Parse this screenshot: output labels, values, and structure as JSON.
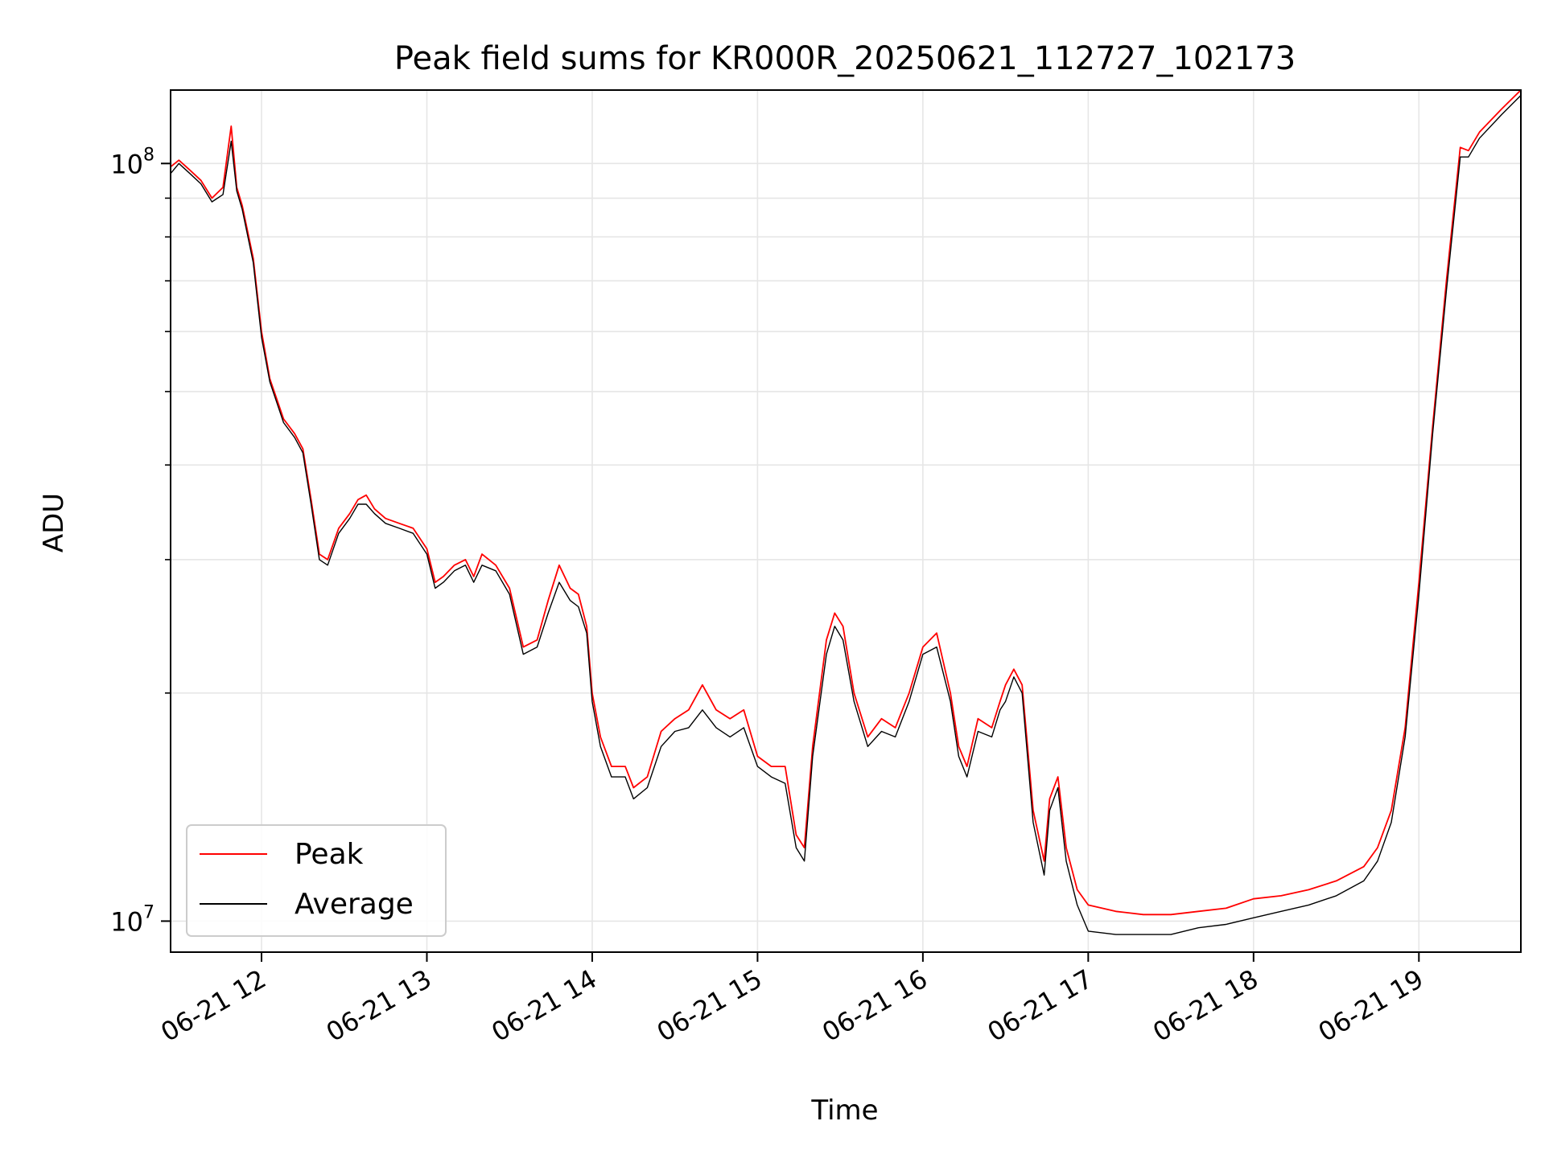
{
  "chart_data": {
    "type": "line",
    "title": "Peak field sums for KR000R_20250621_112727_102173",
    "xlabel": "Time",
    "ylabel": "ADU",
    "yscale": "log",
    "ylim": [
      9100000,
      125000000
    ],
    "xlim": [
      "2025-06-21 11:27",
      "2025-06-21 19:37"
    ],
    "grid": true,
    "legend_position": "lower-left",
    "x_ticks": [
      {
        "value": "2025-06-21 12:00",
        "label": "06-21 12"
      },
      {
        "value": "2025-06-21 13:00",
        "label": "06-21 13"
      },
      {
        "value": "2025-06-21 14:00",
        "label": "06-21 14"
      },
      {
        "value": "2025-06-21 15:00",
        "label": "06-21 15"
      },
      {
        "value": "2025-06-21 16:00",
        "label": "06-21 16"
      },
      {
        "value": "2025-06-21 17:00",
        "label": "06-21 17"
      },
      {
        "value": "2025-06-21 18:00",
        "label": "06-21 18"
      },
      {
        "value": "2025-06-21 19:00",
        "label": "06-21 19"
      }
    ],
    "y_major_ticks": [
      {
        "value": 10000000,
        "base": "10",
        "exp": "7"
      },
      {
        "value": 100000000,
        "base": "10",
        "exp": "8"
      }
    ],
    "y_minor_ticks": [
      20000000,
      30000000,
      40000000,
      50000000,
      60000000,
      70000000,
      80000000,
      90000000
    ],
    "series": [
      {
        "name": "Peak",
        "color": "#ff0000",
        "points": [
          [
            "2025-06-21 11:27",
            99000000
          ],
          [
            "2025-06-21 11:30",
            101000000
          ],
          [
            "2025-06-21 11:34",
            98000000
          ],
          [
            "2025-06-21 11:38",
            95000000
          ],
          [
            "2025-06-21 11:42",
            90000000
          ],
          [
            "2025-06-21 11:46",
            93000000
          ],
          [
            "2025-06-21 11:49",
            112000000
          ],
          [
            "2025-06-21 11:51",
            93000000
          ],
          [
            "2025-06-21 11:53",
            88000000
          ],
          [
            "2025-06-21 11:57",
            75000000
          ],
          [
            "2025-06-21 12:00",
            60000000
          ],
          [
            "2025-06-21 12:03",
            52000000
          ],
          [
            "2025-06-21 12:08",
            46000000
          ],
          [
            "2025-06-21 12:12",
            44000000
          ],
          [
            "2025-06-21 12:15",
            42000000
          ],
          [
            "2025-06-21 12:18",
            36000000
          ],
          [
            "2025-06-21 12:21",
            30500000
          ],
          [
            "2025-06-21 12:24",
            30000000
          ],
          [
            "2025-06-21 12:28",
            33000000
          ],
          [
            "2025-06-21 12:32",
            34500000
          ],
          [
            "2025-06-21 12:35",
            36000000
          ],
          [
            "2025-06-21 12:38",
            36500000
          ],
          [
            "2025-06-21 12:41",
            35000000
          ],
          [
            "2025-06-21 12:45",
            34000000
          ],
          [
            "2025-06-21 12:50",
            33500000
          ],
          [
            "2025-06-21 12:55",
            33000000
          ],
          [
            "2025-06-21 13:00",
            31000000
          ],
          [
            "2025-06-21 13:03",
            28000000
          ],
          [
            "2025-06-21 13:06",
            28500000
          ],
          [
            "2025-06-21 13:10",
            29500000
          ],
          [
            "2025-06-21 13:14",
            30000000
          ],
          [
            "2025-06-21 13:17",
            28500000
          ],
          [
            "2025-06-21 13:20",
            30500000
          ],
          [
            "2025-06-21 13:25",
            29500000
          ],
          [
            "2025-06-21 13:30",
            27500000
          ],
          [
            "2025-06-21 13:35",
            23000000
          ],
          [
            "2025-06-21 13:40",
            23500000
          ],
          [
            "2025-06-21 13:44",
            26500000
          ],
          [
            "2025-06-21 13:48",
            29500000
          ],
          [
            "2025-06-21 13:52",
            27500000
          ],
          [
            "2025-06-21 13:55",
            27000000
          ],
          [
            "2025-06-21 13:58",
            24500000
          ],
          [
            "2025-06-21 14:00",
            20000000
          ],
          [
            "2025-06-21 14:03",
            17500000
          ],
          [
            "2025-06-21 14:07",
            16000000
          ],
          [
            "2025-06-21 14:12",
            16000000
          ],
          [
            "2025-06-21 14:15",
            15000000
          ],
          [
            "2025-06-21 14:20",
            15500000
          ],
          [
            "2025-06-21 14:25",
            17800000
          ],
          [
            "2025-06-21 14:30",
            18500000
          ],
          [
            "2025-06-21 14:35",
            19000000
          ],
          [
            "2025-06-21 14:40",
            20500000
          ],
          [
            "2025-06-21 14:45",
            19000000
          ],
          [
            "2025-06-21 14:50",
            18500000
          ],
          [
            "2025-06-21 14:55",
            19000000
          ],
          [
            "2025-06-21 15:00",
            16500000
          ],
          [
            "2025-06-21 15:05",
            16000000
          ],
          [
            "2025-06-21 15:10",
            16000000
          ],
          [
            "2025-06-21 15:14",
            13000000
          ],
          [
            "2025-06-21 15:17",
            12500000
          ],
          [
            "2025-06-21 15:20",
            17000000
          ],
          [
            "2025-06-21 15:25",
            23500000
          ],
          [
            "2025-06-21 15:28",
            25500000
          ],
          [
            "2025-06-21 15:31",
            24500000
          ],
          [
            "2025-06-21 15:35",
            20000000
          ],
          [
            "2025-06-21 15:40",
            17500000
          ],
          [
            "2025-06-21 15:45",
            18500000
          ],
          [
            "2025-06-21 15:50",
            18000000
          ],
          [
            "2025-06-21 15:55",
            20000000
          ],
          [
            "2025-06-21 16:00",
            23000000
          ],
          [
            "2025-06-21 16:05",
            24000000
          ],
          [
            "2025-06-21 16:10",
            20000000
          ],
          [
            "2025-06-21 16:13",
            17000000
          ],
          [
            "2025-06-21 16:16",
            16000000
          ],
          [
            "2025-06-21 16:20",
            18500000
          ],
          [
            "2025-06-21 16:25",
            18000000
          ],
          [
            "2025-06-21 16:28",
            19500000
          ],
          [
            "2025-06-21 16:30",
            20500000
          ],
          [
            "2025-06-21 16:33",
            21500000
          ],
          [
            "2025-06-21 16:36",
            20500000
          ],
          [
            "2025-06-21 16:40",
            14000000
          ],
          [
            "2025-06-21 16:44",
            12000000
          ],
          [
            "2025-06-21 16:46",
            14500000
          ],
          [
            "2025-06-21 16:49",
            15500000
          ],
          [
            "2025-06-21 16:52",
            12500000
          ],
          [
            "2025-06-21 16:56",
            11000000
          ],
          [
            "2025-06-21 17:00",
            10500000
          ],
          [
            "2025-06-21 17:10",
            10300000
          ],
          [
            "2025-06-21 17:20",
            10200000
          ],
          [
            "2025-06-21 17:30",
            10200000
          ],
          [
            "2025-06-21 17:40",
            10300000
          ],
          [
            "2025-06-21 17:50",
            10400000
          ],
          [
            "2025-06-21 18:00",
            10700000
          ],
          [
            "2025-06-21 18:10",
            10800000
          ],
          [
            "2025-06-21 18:20",
            11000000
          ],
          [
            "2025-06-21 18:30",
            11300000
          ],
          [
            "2025-06-21 18:40",
            11800000
          ],
          [
            "2025-06-21 18:45",
            12500000
          ],
          [
            "2025-06-21 18:50",
            14000000
          ],
          [
            "2025-06-21 18:55",
            18000000
          ],
          [
            "2025-06-21 19:00",
            28000000
          ],
          [
            "2025-06-21 19:05",
            45000000
          ],
          [
            "2025-06-21 19:10",
            70000000
          ],
          [
            "2025-06-21 19:15",
            105000000
          ],
          [
            "2025-06-21 19:18",
            104000000
          ],
          [
            "2025-06-21 19:22",
            110000000
          ],
          [
            "2025-06-21 19:30",
            118000000
          ],
          [
            "2025-06-21 19:37",
            125000000
          ]
        ]
      },
      {
        "name": "Average",
        "color": "#000000",
        "points": [
          [
            "2025-06-21 11:27",
            97000000
          ],
          [
            "2025-06-21 11:30",
            100000000
          ],
          [
            "2025-06-21 11:34",
            97000000
          ],
          [
            "2025-06-21 11:38",
            94000000
          ],
          [
            "2025-06-21 11:42",
            89000000
          ],
          [
            "2025-06-21 11:46",
            91000000
          ],
          [
            "2025-06-21 11:49",
            107000000
          ],
          [
            "2025-06-21 11:51",
            92000000
          ],
          [
            "2025-06-21 11:53",
            87000000
          ],
          [
            "2025-06-21 11:57",
            74000000
          ],
          [
            "2025-06-21 12:00",
            59000000
          ],
          [
            "2025-06-21 12:03",
            51500000
          ],
          [
            "2025-06-21 12:08",
            45500000
          ],
          [
            "2025-06-21 12:12",
            43500000
          ],
          [
            "2025-06-21 12:15",
            41500000
          ],
          [
            "2025-06-21 12:18",
            35500000
          ],
          [
            "2025-06-21 12:21",
            30000000
          ],
          [
            "2025-06-21 12:24",
            29500000
          ],
          [
            "2025-06-21 12:28",
            32500000
          ],
          [
            "2025-06-21 12:32",
            34000000
          ],
          [
            "2025-06-21 12:35",
            35500000
          ],
          [
            "2025-06-21 12:38",
            35500000
          ],
          [
            "2025-06-21 12:41",
            34500000
          ],
          [
            "2025-06-21 12:45",
            33500000
          ],
          [
            "2025-06-21 12:50",
            33000000
          ],
          [
            "2025-06-21 12:55",
            32500000
          ],
          [
            "2025-06-21 13:00",
            30500000
          ],
          [
            "2025-06-21 13:03",
            27500000
          ],
          [
            "2025-06-21 13:06",
            28000000
          ],
          [
            "2025-06-21 13:10",
            29000000
          ],
          [
            "2025-06-21 13:14",
            29500000
          ],
          [
            "2025-06-21 13:17",
            28000000
          ],
          [
            "2025-06-21 13:20",
            29500000
          ],
          [
            "2025-06-21 13:25",
            29000000
          ],
          [
            "2025-06-21 13:30",
            27000000
          ],
          [
            "2025-06-21 13:35",
            22500000
          ],
          [
            "2025-06-21 13:40",
            23000000
          ],
          [
            "2025-06-21 13:44",
            25500000
          ],
          [
            "2025-06-21 13:48",
            28000000
          ],
          [
            "2025-06-21 13:52",
            26500000
          ],
          [
            "2025-06-21 13:55",
            26000000
          ],
          [
            "2025-06-21 13:58",
            24000000
          ],
          [
            "2025-06-21 14:00",
            19500000
          ],
          [
            "2025-06-21 14:03",
            17000000
          ],
          [
            "2025-06-21 14:07",
            15500000
          ],
          [
            "2025-06-21 14:12",
            15500000
          ],
          [
            "2025-06-21 14:15",
            14500000
          ],
          [
            "2025-06-21 14:20",
            15000000
          ],
          [
            "2025-06-21 14:25",
            17000000
          ],
          [
            "2025-06-21 14:30",
            17800000
          ],
          [
            "2025-06-21 14:35",
            18000000
          ],
          [
            "2025-06-21 14:40",
            19000000
          ],
          [
            "2025-06-21 14:45",
            18000000
          ],
          [
            "2025-06-21 14:50",
            17500000
          ],
          [
            "2025-06-21 14:55",
            18000000
          ],
          [
            "2025-06-21 15:00",
            16000000
          ],
          [
            "2025-06-21 15:05",
            15500000
          ],
          [
            "2025-06-21 15:10",
            15200000
          ],
          [
            "2025-06-21 15:14",
            12500000
          ],
          [
            "2025-06-21 15:17",
            12000000
          ],
          [
            "2025-06-21 15:20",
            16500000
          ],
          [
            "2025-06-21 15:25",
            22500000
          ],
          [
            "2025-06-21 15:28",
            24500000
          ],
          [
            "2025-06-21 15:31",
            23500000
          ],
          [
            "2025-06-21 15:35",
            19500000
          ],
          [
            "2025-06-21 15:40",
            17000000
          ],
          [
            "2025-06-21 15:45",
            17800000
          ],
          [
            "2025-06-21 15:50",
            17500000
          ],
          [
            "2025-06-21 15:55",
            19500000
          ],
          [
            "2025-06-21 16:00",
            22500000
          ],
          [
            "2025-06-21 16:05",
            23000000
          ],
          [
            "2025-06-21 16:10",
            19500000
          ],
          [
            "2025-06-21 16:13",
            16500000
          ],
          [
            "2025-06-21 16:16",
            15500000
          ],
          [
            "2025-06-21 16:20",
            17800000
          ],
          [
            "2025-06-21 16:25",
            17500000
          ],
          [
            "2025-06-21 16:28",
            19000000
          ],
          [
            "2025-06-21 16:30",
            19500000
          ],
          [
            "2025-06-21 16:33",
            21000000
          ],
          [
            "2025-06-21 16:36",
            20000000
          ],
          [
            "2025-06-21 16:40",
            13500000
          ],
          [
            "2025-06-21 16:44",
            11500000
          ],
          [
            "2025-06-21 16:46",
            14000000
          ],
          [
            "2025-06-21 16:49",
            15000000
          ],
          [
            "2025-06-21 16:52",
            12000000
          ],
          [
            "2025-06-21 16:56",
            10500000
          ],
          [
            "2025-06-21 17:00",
            9700000
          ],
          [
            "2025-06-21 17:10",
            9600000
          ],
          [
            "2025-06-21 17:20",
            9600000
          ],
          [
            "2025-06-21 17:30",
            9600000
          ],
          [
            "2025-06-21 17:40",
            9800000
          ],
          [
            "2025-06-21 17:50",
            9900000
          ],
          [
            "2025-06-21 18:00",
            10100000
          ],
          [
            "2025-06-21 18:10",
            10300000
          ],
          [
            "2025-06-21 18:20",
            10500000
          ],
          [
            "2025-06-21 18:30",
            10800000
          ],
          [
            "2025-06-21 18:40",
            11300000
          ],
          [
            "2025-06-21 18:45",
            12000000
          ],
          [
            "2025-06-21 18:50",
            13500000
          ],
          [
            "2025-06-21 18:55",
            17500000
          ],
          [
            "2025-06-21 19:00",
            27000000
          ],
          [
            "2025-06-21 19:05",
            44000000
          ],
          [
            "2025-06-21 19:10",
            68000000
          ],
          [
            "2025-06-21 19:15",
            102000000
          ],
          [
            "2025-06-21 19:18",
            102000000
          ],
          [
            "2025-06-21 19:22",
            108000000
          ],
          [
            "2025-06-21 19:30",
            116000000
          ],
          [
            "2025-06-21 19:37",
            123000000
          ]
        ]
      }
    ]
  }
}
